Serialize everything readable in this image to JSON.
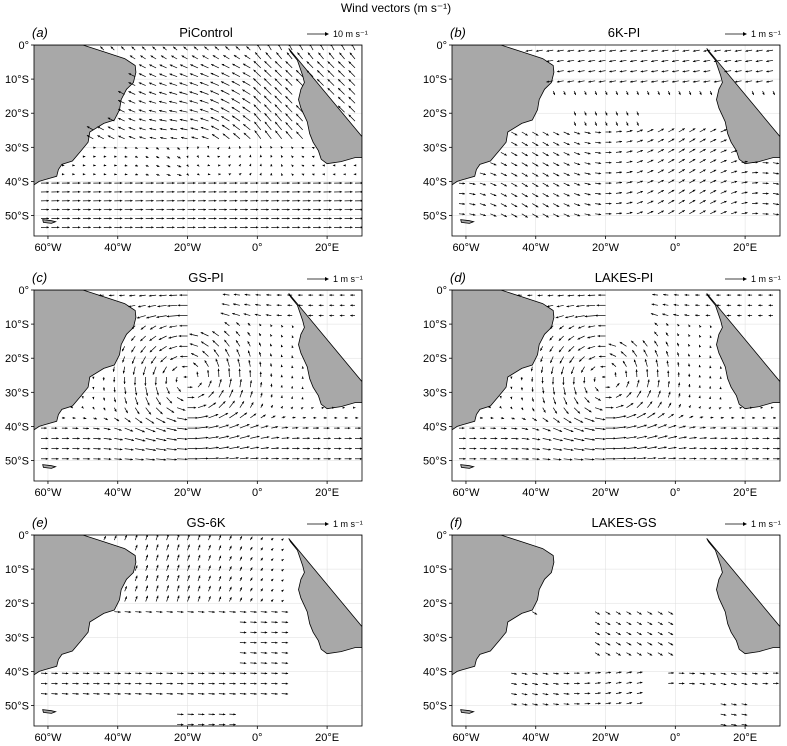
{
  "figure_title": "Wind vectors (m s⁻¹)",
  "colors": {
    "land": "#a8a8a8",
    "ocean": "#ffffff",
    "vector": "#000000",
    "grid": "#dddddd",
    "frame": "#000000"
  },
  "chart_data": [
    {
      "label": "(a)",
      "title": "PiControl",
      "type": "vector-field",
      "scale_label": "10 m s⁻¹",
      "xticks": [
        "60°W",
        "40°W",
        "20°W",
        "0°",
        "20°E"
      ],
      "xtick_values": [
        -60,
        -40,
        -20,
        0,
        20
      ],
      "yticks": [
        "0°",
        "10°S",
        "20°S",
        "30°S",
        "40°S",
        "50°S"
      ],
      "ytick_values": [
        0,
        -10,
        -20,
        -30,
        -40,
        -50
      ],
      "xlim": [
        -64,
        30
      ],
      "ylim": [
        -56,
        0
      ]
    },
    {
      "label": "(b)",
      "title": "6K-PI",
      "type": "vector-field",
      "scale_label": "1 m s⁻¹",
      "xticks": [
        "60°W",
        "40°W",
        "20°W",
        "0°",
        "20°E"
      ],
      "xtick_values": [
        -60,
        -40,
        -20,
        0,
        20
      ],
      "yticks": [
        "0°",
        "10°S",
        "20°S",
        "30°S",
        "40°S",
        "50°S"
      ],
      "ytick_values": [
        0,
        -10,
        -20,
        -30,
        -40,
        -50
      ],
      "xlim": [
        -64,
        30
      ],
      "ylim": [
        -56,
        0
      ]
    },
    {
      "label": "(c)",
      "title": "GS-PI",
      "type": "vector-field",
      "scale_label": "1 m s⁻¹",
      "xticks": [
        "60°W",
        "40°W",
        "20°W",
        "0°",
        "20°E"
      ],
      "xtick_values": [
        -60,
        -40,
        -20,
        0,
        20
      ],
      "yticks": [
        "0°",
        "10°S",
        "20°S",
        "30°S",
        "40°S",
        "50°S"
      ],
      "ytick_values": [
        0,
        -10,
        -20,
        -30,
        -40,
        -50
      ],
      "xlim": [
        -64,
        30
      ],
      "ylim": [
        -56,
        0
      ]
    },
    {
      "label": "(d)",
      "title": "LAKES-PI",
      "type": "vector-field",
      "scale_label": "1 m s⁻¹",
      "xticks": [
        "60°W",
        "40°W",
        "20°W",
        "0°",
        "20°E"
      ],
      "xtick_values": [
        -60,
        -40,
        -20,
        0,
        20
      ],
      "yticks": [
        "0°",
        "10°S",
        "20°S",
        "30°S",
        "40°S",
        "50°S"
      ],
      "ytick_values": [
        0,
        -10,
        -20,
        -30,
        -40,
        -50
      ],
      "xlim": [
        -64,
        30
      ],
      "ylim": [
        -56,
        0
      ]
    },
    {
      "label": "(e)",
      "title": "GS-6K",
      "type": "vector-field",
      "scale_label": "1 m s⁻¹",
      "xticks": [
        "60°W",
        "40°W",
        "20°W",
        "0°",
        "20°E"
      ],
      "xtick_values": [
        -60,
        -40,
        -20,
        0,
        20
      ],
      "yticks": [
        "0°",
        "10°S",
        "20°S",
        "30°S",
        "40°S",
        "50°S"
      ],
      "ytick_values": [
        0,
        -10,
        -20,
        -30,
        -40,
        -50
      ],
      "xlim": [
        -64,
        30
      ],
      "ylim": [
        -56,
        0
      ]
    },
    {
      "label": "(f)",
      "title": "LAKES-GS",
      "type": "vector-field",
      "scale_label": "1 m s⁻¹",
      "xticks": [
        "60°W",
        "40°W",
        "20°W",
        "0°",
        "20°E"
      ],
      "xtick_values": [
        -60,
        -40,
        -20,
        0,
        20
      ],
      "yticks": [
        "0°",
        "10°S",
        "20°S",
        "30°S",
        "40°S",
        "50°S"
      ],
      "ytick_values": [
        0,
        -10,
        -20,
        -30,
        -40,
        -50
      ],
      "xlim": [
        -64,
        30
      ],
      "ylim": [
        -56,
        0
      ]
    }
  ]
}
